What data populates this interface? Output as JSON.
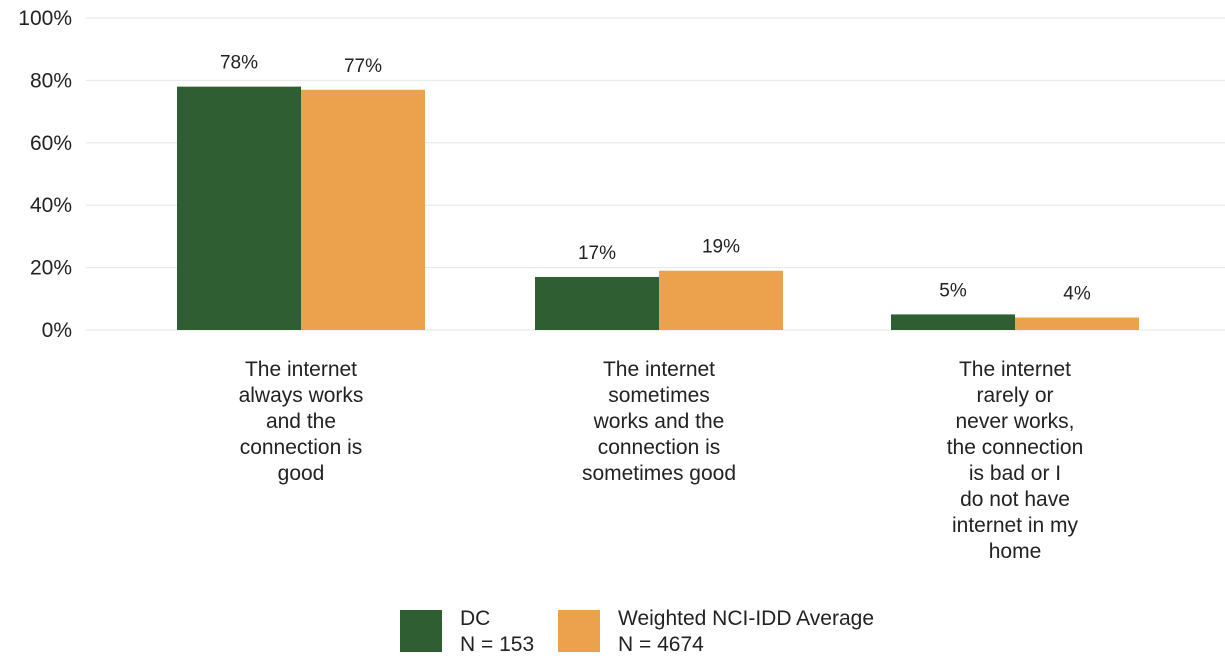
{
  "chart_data": {
    "type": "bar",
    "categories": [
      [
        "The internet",
        "always works",
        "and the",
        "connection is",
        "good"
      ],
      [
        "The internet",
        "sometimes",
        "works and the",
        "connection is",
        "sometimes good"
      ],
      [
        "The internet",
        "rarely or",
        "never works,",
        "the connection",
        "is bad or I",
        "do not have",
        "internet in my",
        "home"
      ]
    ],
    "series": [
      {
        "name_lines": [
          "DC",
          "N = 153"
        ],
        "color": "#2e5e32",
        "values": [
          78,
          17,
          5
        ],
        "labels": [
          "78%",
          "17%",
          "5%"
        ]
      },
      {
        "name_lines": [
          "Weighted NCI-IDD Average",
          "N = 4674"
        ],
        "color": "#eca24d",
        "values": [
          77,
          19,
          4
        ],
        "labels": [
          "77%",
          "19%",
          "4%"
        ]
      }
    ],
    "ylim": [
      0,
      100
    ],
    "yticks": [
      "0%",
      "20%",
      "40%",
      "60%",
      "80%",
      "100%"
    ],
    "grid": true,
    "legend_position": "bottom"
  }
}
